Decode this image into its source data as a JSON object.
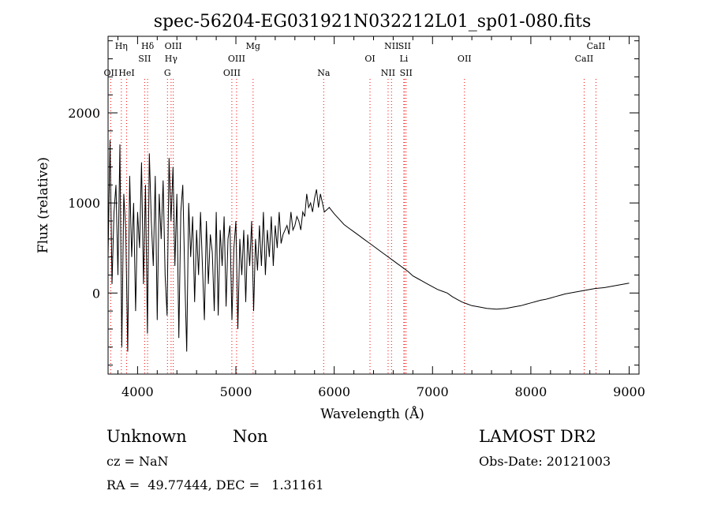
{
  "chart_data": {
    "type": "line",
    "title": "spec-56204-EG031921N032212L01_sp01-080.fits",
    "xlabel": "Wavelength (Å)",
    "ylabel": "Flux (relative)",
    "xlim": [
      3700,
      9100
    ],
    "ylim": [
      -900,
      2850
    ],
    "x_ticks": [
      4000,
      5000,
      6000,
      7000,
      8000,
      9000
    ],
    "y_ticks": [
      0,
      1000,
      2000
    ],
    "grid": false,
    "line_color": "#000000",
    "marker_color": "#ff0000",
    "series": [
      {
        "x": [
          3700,
          3720,
          3740,
          3760,
          3780,
          3800,
          3820,
          3840,
          3860,
          3880,
          3900,
          3920,
          3940,
          3960,
          3980,
          4000,
          4020,
          4040,
          4060,
          4080,
          4100,
          4120,
          4140,
          4160,
          4180,
          4200,
          4220,
          4240,
          4260,
          4280,
          4300,
          4320,
          4340,
          4360,
          4380,
          4400,
          4420,
          4440,
          4460,
          4480,
          4500,
          4520,
          4540,
          4560,
          4580,
          4600,
          4620,
          4640,
          4660,
          4680,
          4700,
          4720,
          4740,
          4760,
          4780,
          4800,
          4820,
          4840,
          4860,
          4880,
          4900,
          4920,
          4940,
          4960,
          4980,
          5000,
          5020,
          5040,
          5060,
          5080,
          5100,
          5120,
          5140,
          5160,
          5180,
          5200,
          5220,
          5240,
          5260,
          5280,
          5300,
          5320,
          5340,
          5360,
          5380,
          5400,
          5420,
          5440,
          5460,
          5480,
          5500,
          5520,
          5540,
          5560,
          5580,
          5600,
          5620,
          5640,
          5660,
          5680,
          5700,
          5720,
          5740,
          5760,
          5780,
          5800,
          5820,
          5840,
          5860,
          5880,
          5900,
          5950,
          6000,
          6050,
          6100,
          6150,
          6200,
          6250,
          6300,
          6350,
          6400,
          6450,
          6500,
          6550,
          6600,
          6650,
          6700,
          6750,
          6800,
          6850,
          6900,
          6950,
          7000,
          7050,
          7100,
          7150,
          7200,
          7250,
          7300,
          7350,
          7400,
          7450,
          7500,
          7550,
          7600,
          7650,
          7700,
          7750,
          7800,
          7850,
          7900,
          7950,
          8000,
          8050,
          8100,
          8150,
          8200,
          8250,
          8300,
          8350,
          8400,
          8450,
          8500,
          8550,
          8600,
          8650,
          8700,
          8750,
          8800,
          8850,
          8900,
          8950,
          9000
        ],
        "values": [
          400,
          1700,
          100,
          900,
          1200,
          200,
          1650,
          -600,
          1100,
          700,
          -650,
          1300,
          400,
          1000,
          -200,
          900,
          500,
          1450,
          100,
          1200,
          -450,
          1550,
          800,
          300,
          1300,
          -300,
          1100,
          600,
          1250,
          200,
          -250,
          1500,
          800,
          1400,
          300,
          1100,
          -500,
          900,
          1200,
          200,
          -650,
          1000,
          400,
          850,
          -100,
          700,
          200,
          900,
          300,
          -300,
          800,
          100,
          650,
          450,
          -200,
          900,
          -250,
          700,
          300,
          850,
          -150,
          600,
          750,
          -300,
          500,
          800,
          -400,
          600,
          200,
          700,
          -100,
          650,
          300,
          800,
          -200,
          600,
          250,
          750,
          300,
          900,
          200,
          700,
          400,
          850,
          300,
          750,
          500,
          900,
          550,
          650,
          700,
          750,
          650,
          900,
          700,
          750,
          850,
          800,
          700,
          900,
          850,
          1100,
          950,
          1000,
          900,
          1050,
          1150,
          950,
          1100,
          1000,
          900,
          950,
          880,
          820,
          760,
          720,
          680,
          640,
          600,
          560,
          520,
          480,
          440,
          400,
          360,
          320,
          280,
          240,
          190,
          160,
          130,
          100,
          70,
          40,
          20,
          0,
          -40,
          -70,
          -100,
          -120,
          -140,
          -150,
          -160,
          -170,
          -175,
          -180,
          -175,
          -170,
          -160,
          -150,
          -140,
          -125,
          -110,
          -95,
          -80,
          -70,
          -55,
          -40,
          -25,
          -10,
          0,
          10,
          20,
          30,
          40,
          50,
          55,
          60,
          70,
          80,
          90,
          100,
          110
        ]
      }
    ],
    "lines": [
      {
        "label": "Hη",
        "x": 3835,
        "row": 1
      },
      {
        "label": "OII",
        "x": 3727,
        "row": 3
      },
      {
        "label": "HeI",
        "x": 3889,
        "row": 3
      },
      {
        "label": "Hδ",
        "x": 4102,
        "row": 1
      },
      {
        "label": "SII",
        "x": 4072,
        "row": 2
      },
      {
        "label": "OIII",
        "x": 4363,
        "row": 1
      },
      {
        "label": "Hγ",
        "x": 4341,
        "row": 2
      },
      {
        "label": "G",
        "x": 4304,
        "row": 3
      },
      {
        "label": "Mg",
        "x": 5175,
        "row": 1
      },
      {
        "label": "OIII",
        "x": 5007,
        "row": 2
      },
      {
        "label": "OIII",
        "x": 4959,
        "row": 3
      },
      {
        "label": "Na",
        "x": 5893,
        "row": 3
      },
      {
        "label": "OI",
        "x": 6364,
        "row": 2
      },
      {
        "label": "NII",
        "x": 6583,
        "row": 1
      },
      {
        "label": "SII",
        "x": 6716,
        "row": 1
      },
      {
        "label": "Li",
        "x": 6708,
        "row": 2
      },
      {
        "label": "NII",
        "x": 6548,
        "row": 3
      },
      {
        "label": "SII",
        "x": 6731,
        "row": 3
      },
      {
        "label": "OII",
        "x": 7325,
        "row": 2
      },
      {
        "label": "CaII",
        "x": 8662,
        "row": 1
      },
      {
        "label": "CaII",
        "x": 8542,
        "row": 2
      }
    ]
  },
  "info": {
    "class_label": "Unknown",
    "subclass_label": "Non",
    "survey": "LAMOST DR2",
    "redshift": "cz = NaN",
    "obs_date": "Obs-Date: 20121003",
    "coords": "RA =  49.77444, DEC =   1.31161"
  }
}
